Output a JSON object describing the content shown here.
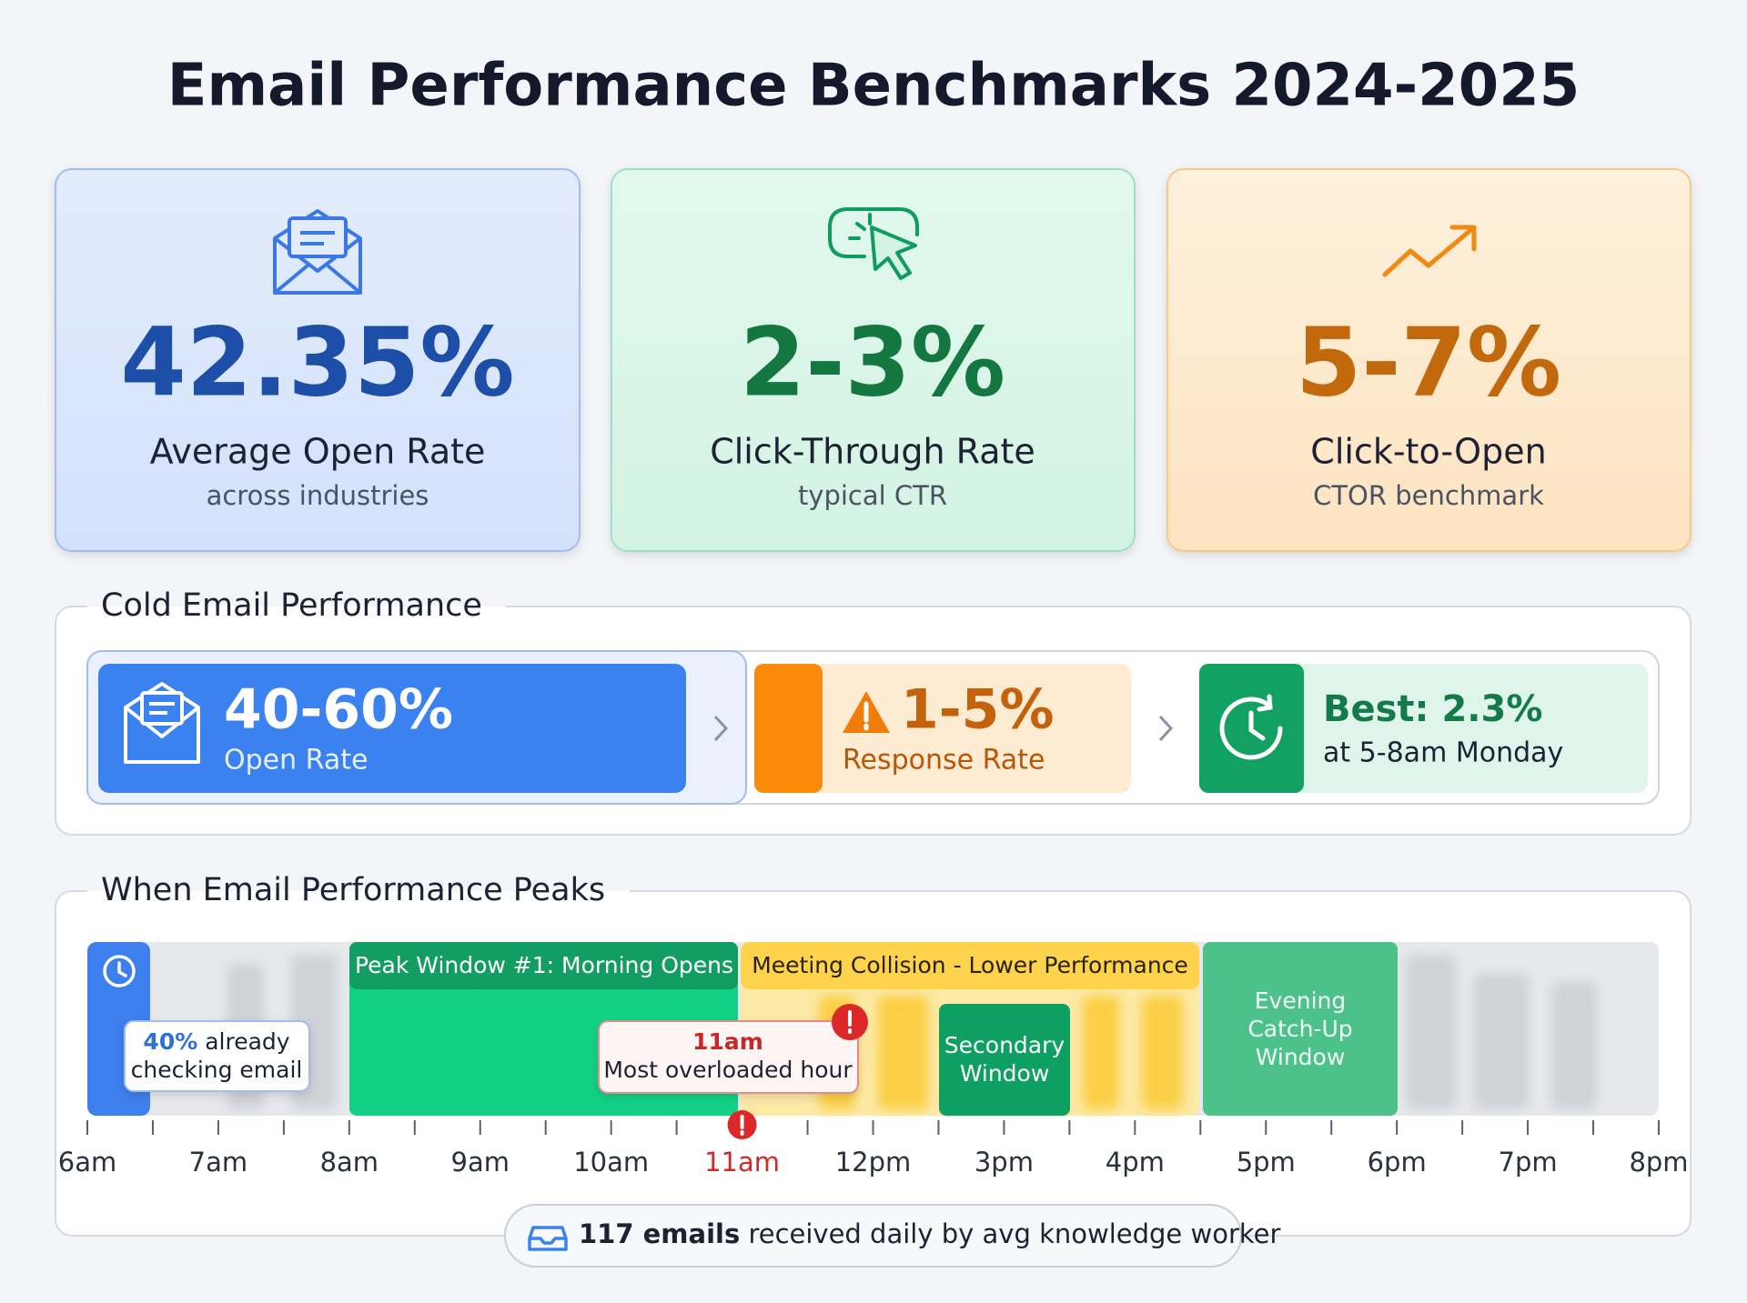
{
  "title": "Email Performance Benchmarks 2024-2025",
  "cards": [
    {
      "value": "42.35%",
      "label": "Average Open Rate",
      "sub": "across industries"
    },
    {
      "value": "2-3%",
      "label": "Click-Through Rate",
      "sub": "typical CTR"
    },
    {
      "value": "5-7%",
      "label": "Click-to-Open",
      "sub": "CTOR benchmark"
    }
  ],
  "cold_email": {
    "heading": "Cold Email Performance",
    "open": {
      "value": "40-60%",
      "label": "Open Rate"
    },
    "response": {
      "value": "1-5%",
      "label": "Response Rate"
    },
    "best": {
      "value": "Best: 2.3%",
      "label": "at 5-8am Monday"
    }
  },
  "timeline": {
    "heading": "When Email Performance Peaks",
    "hours": [
      "6am",
      "7am",
      "8am",
      "9am",
      "10am",
      "11am",
      "12pm",
      "3pm",
      "4pm",
      "5pm",
      "6pm",
      "7pm",
      "8pm"
    ],
    "windows": {
      "peak": "Peak Window #1: Morning Opens",
      "collision": "Meeting Collision - Lower Performance",
      "secondary": [
        "Secondary",
        "Window"
      ],
      "evening": [
        "Evening",
        "Catch-Up",
        "Window"
      ]
    },
    "callouts": {
      "already": {
        "highlight": "40%",
        "rest": "already",
        "line2": "checking email"
      },
      "overload": {
        "time": "11am",
        "text": "Most overloaded hour"
      }
    }
  },
  "footer": {
    "highlight": "117 emails",
    "rest": "received daily by avg knowledge worker"
  }
}
